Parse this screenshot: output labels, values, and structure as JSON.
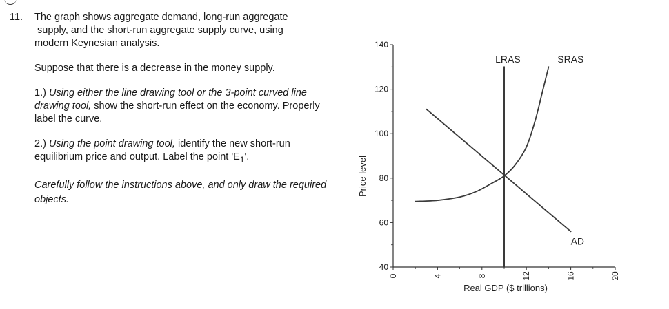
{
  "question": {
    "number": "11.",
    "intro_line1": "The graph shows aggregate demand, long-run aggregate",
    "intro_line2": "supply, and the short-run aggregate supply curve, using",
    "intro_line3": "modern Keynesian analysis.",
    "scenario": "Suppose that there is a decrease in the money supply.",
    "step1_prefix": "1.) ",
    "step1_italic": "Using either the line drawing tool or the 3-point curved line drawing tool,",
    "step1_rest": " show the short-run effect on the economy.  Properly label the curve.",
    "step2_prefix": "2.) ",
    "step2_italic": "Using the point drawing tool,",
    "step2_rest_before": " identify the new  short-run equilibrium price and output.  Label the point 'E",
    "step2_subscript": "1",
    "step2_rest_after": "'.",
    "note": "Carefully follow the instructions above, and only draw the required objects."
  },
  "chart_data": {
    "type": "line",
    "xlabel": "Real GDP ($ trillions)",
    "ylabel": "Price level",
    "xlim": [
      0,
      20
    ],
    "ylim": [
      40,
      140
    ],
    "xticks": [
      0,
      4,
      8,
      12,
      16,
      20
    ],
    "yticks": [
      40,
      60,
      80,
      100,
      120,
      140
    ],
    "series": [
      {
        "name": "LRAS",
        "label_anchor": [
          9.2,
          132
        ],
        "points": [
          [
            10,
            40
          ],
          [
            10,
            130
          ]
        ]
      },
      {
        "name": "SRAS",
        "label_anchor": [
          14.8,
          132
        ],
        "points": [
          [
            2,
            69.5
          ],
          [
            4,
            70
          ],
          [
            6,
            71.5
          ],
          [
            7.5,
            74
          ],
          [
            9,
            78
          ],
          [
            10,
            81
          ],
          [
            11,
            86
          ],
          [
            12,
            94
          ],
          [
            12.8,
            106
          ],
          [
            13.5,
            120
          ],
          [
            14,
            130
          ]
        ]
      },
      {
        "name": "AD",
        "label_anchor": [
          16,
          50
        ],
        "points": [
          [
            3,
            111
          ],
          [
            16,
            56
          ]
        ]
      }
    ]
  },
  "colors": {
    "text": "#1a1a1a",
    "curve": "#3a3a3a",
    "axis": "#333333"
  }
}
